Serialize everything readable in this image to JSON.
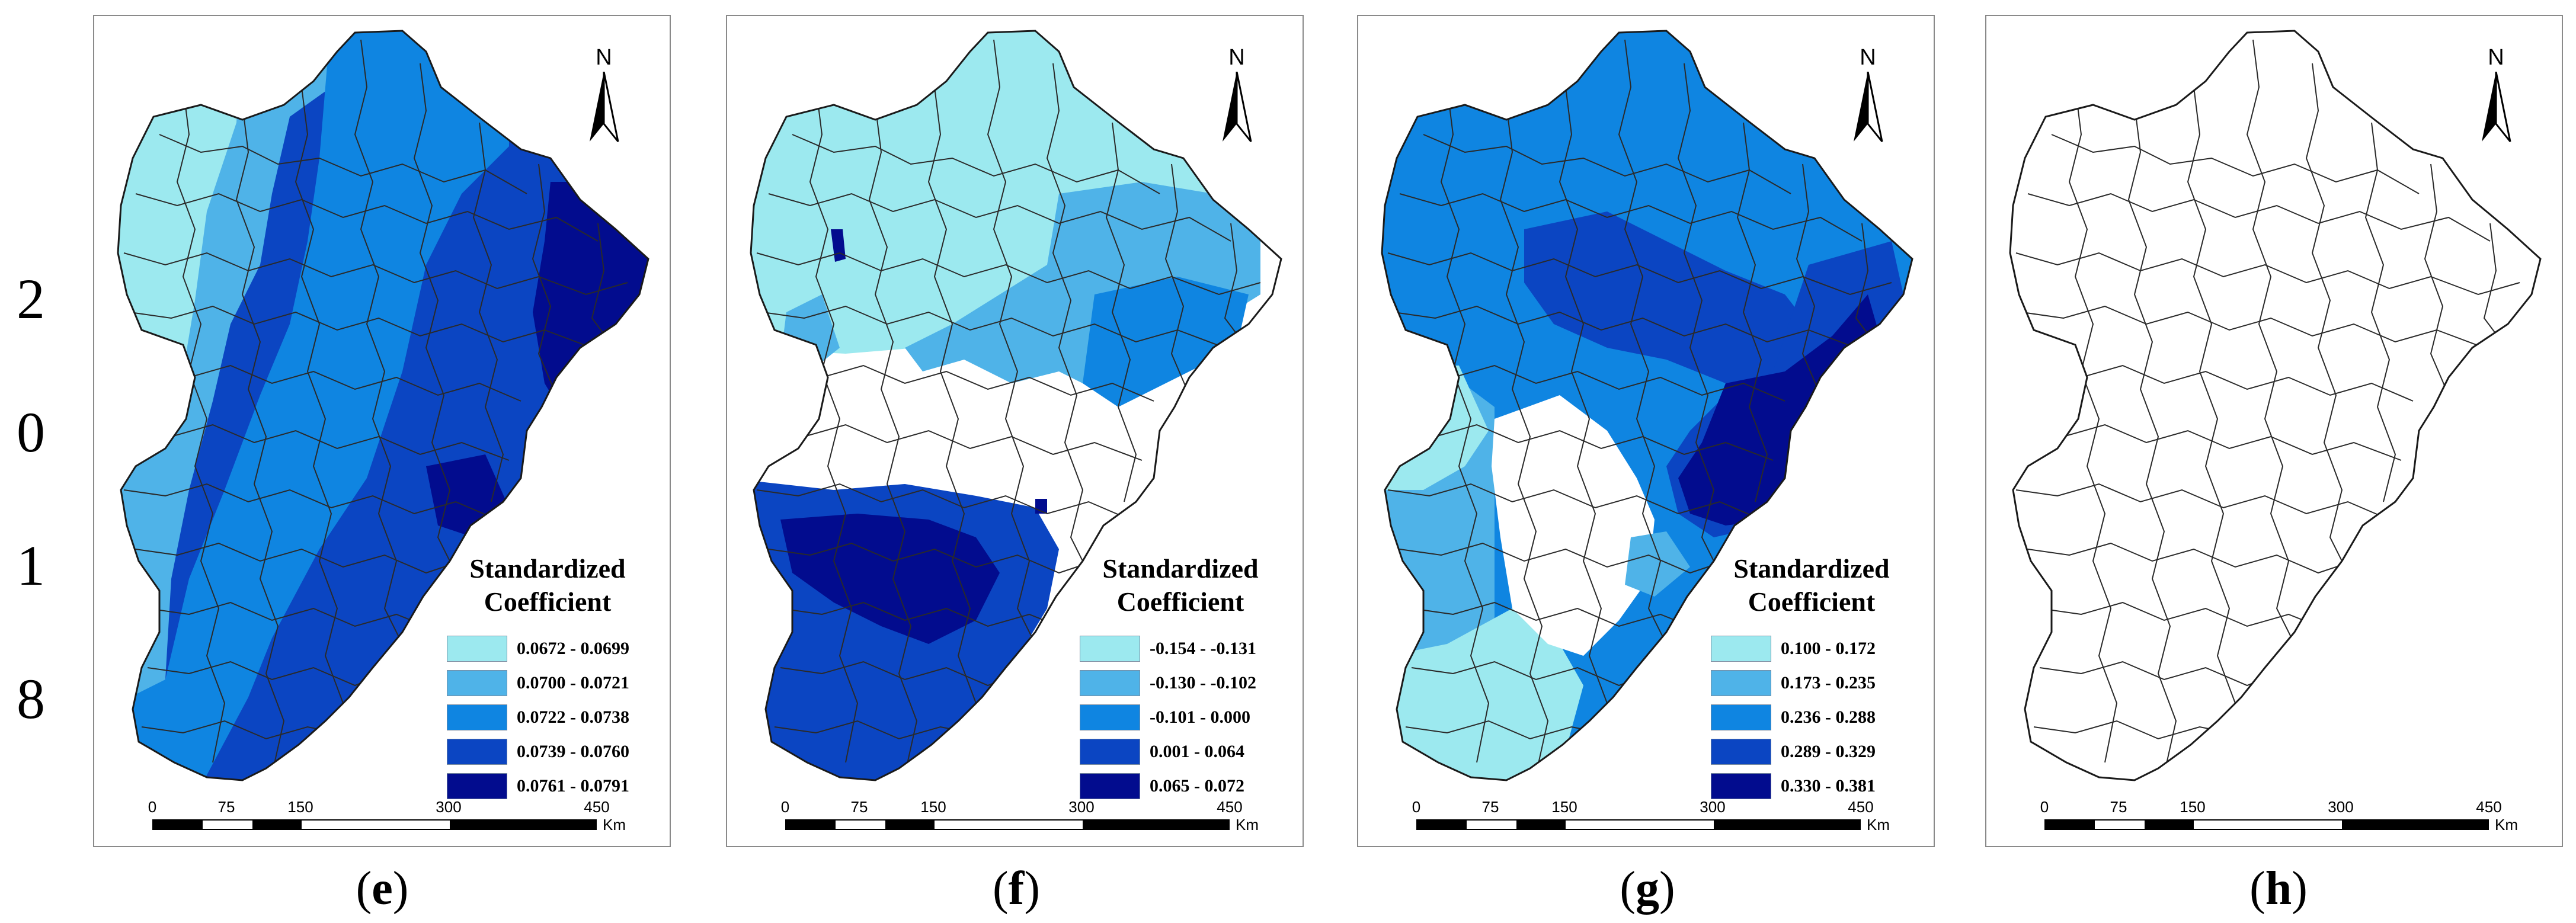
{
  "year_label": [
    "2",
    "0",
    "1",
    "8"
  ],
  "north_label": "N",
  "legend_title_line1": "Standardized",
  "legend_title_line2": "Coefficient",
  "scale": {
    "ticks": [
      "0",
      "75",
      "150",
      "300",
      "450"
    ],
    "unit": "Km"
  },
  "colors": {
    "class1": "#9ce9ef",
    "class2": "#4fb3e8",
    "class3": "#0f85e1",
    "class4": "#0b45c2",
    "class5": "#020c8e",
    "outline": "#2a2a2a",
    "panel_border": "#8a8a8a"
  },
  "panels": [
    {
      "id": "e",
      "caption_open": "(",
      "caption_letter": "e",
      "caption_close": ")",
      "legend": [
        {
          "label": "0.0672 - 0.0699",
          "color": "#9ce9ef"
        },
        {
          "label": "0.0700 - 0.0721",
          "color": "#4fb3e8"
        },
        {
          "label": "0.0722 - 0.0738",
          "color": "#0f85e1"
        },
        {
          "label": "0.0739 - 0.0760",
          "color": "#0b45c2"
        },
        {
          "label": "0.0761 - 0.0791",
          "color": "#020c8e"
        }
      ]
    },
    {
      "id": "f",
      "caption_open": "(",
      "caption_letter": "f",
      "caption_close": ")",
      "legend": [
        {
          "label": "-0.154 - -0.131",
          "color": "#9ce9ef"
        },
        {
          "label": "-0.130 - -0.102",
          "color": "#4fb3e8"
        },
        {
          "label": "-0.101 - 0.000",
          "color": "#0f85e1"
        },
        {
          "label": "0.001 - 0.064",
          "color": "#0b45c2"
        },
        {
          "label": "0.065 - 0.072",
          "color": "#020c8e"
        }
      ]
    },
    {
      "id": "g",
      "caption_open": "(",
      "caption_letter": "g",
      "caption_close": ")",
      "legend": [
        {
          "label": "0.100 - 0.172",
          "color": "#9ce9ef"
        },
        {
          "label": "0.173 - 0.235",
          "color": "#4fb3e8"
        },
        {
          "label": "0.236 - 0.288",
          "color": "#0f85e1"
        },
        {
          "label": "0.289 - 0.329",
          "color": "#0b45c2"
        },
        {
          "label": "0.330 - 0.381",
          "color": "#020c8e"
        }
      ]
    },
    {
      "id": "h",
      "caption_open": "(",
      "caption_letter": "h",
      "caption_close": ")",
      "legend": []
    }
  ]
}
